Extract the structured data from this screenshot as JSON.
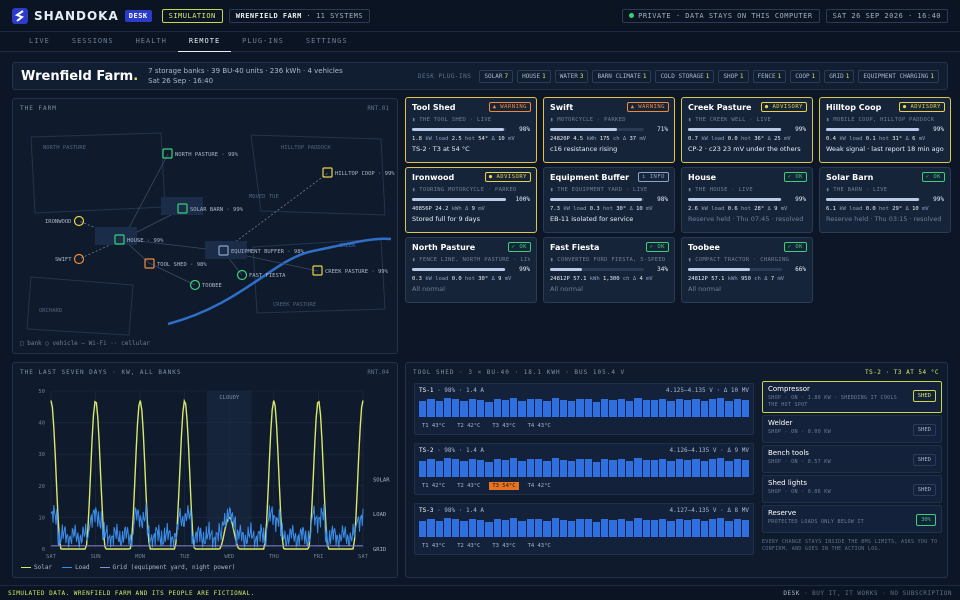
{
  "header": {
    "brand": "SHANDOKA",
    "desk_badge": "DESK",
    "mode": "SIMULATION",
    "farm_name": "WRENFIELD FARM",
    "systems": "· 11 SYSTEMS",
    "privacy": "PRIVATE · DATA STAYS ON THIS COMPUTER",
    "datetime": "SAT 26 SEP 2026 · 16:40"
  },
  "tabs": [
    "LIVE",
    "SESSIONS",
    "HEALTH",
    "REMOTE",
    "PLUG-INS",
    "SETTINGS"
  ],
  "active_tab": "REMOTE",
  "banner": {
    "title": "Wrenfield Farm",
    "title_dot": ".",
    "meta1": "7 storage banks · 39 BU-40 units · 236 kWh · 4 vehicles",
    "meta2": "Sat 26 Sep · 16:40",
    "plugins_label": "DESK PLUG-INS",
    "plugins": [
      {
        "name": "SOLAR",
        "count": "7"
      },
      {
        "name": "HOUSE",
        "count": "1"
      },
      {
        "name": "WATER",
        "count": "3"
      },
      {
        "name": "BARN CLIMATE",
        "count": "1"
      },
      {
        "name": "COLD STORAGE",
        "count": "1"
      },
      {
        "name": "SHOP",
        "count": "1"
      },
      {
        "name": "FENCE",
        "count": "1"
      },
      {
        "name": "COOP",
        "count": "1"
      },
      {
        "name": "GRID",
        "count": "1"
      },
      {
        "name": "EQUIPMENT CHARGING",
        "count": "1"
      }
    ]
  },
  "map": {
    "title": "THE FARM",
    "tag": "RNT.01",
    "regions": {
      "north_pasture": "NORTH PASTURE",
      "hilltop": "HILLTOP PADDOCK",
      "orchard": "ORCHARD",
      "creek_pasture": "CREEK PASTURE",
      "creek": "CREEK",
      "moved": "MOVED TUE"
    },
    "nodes": {
      "north_pasture": "NORTH PASTURE · 99%",
      "hilltop": "HILLTOP COOP · 99%",
      "solar_barn": "SOLAR BARN · 99%",
      "ironwood": "IRONWOOD",
      "house": "HOUSE · 99%",
      "swift": "SWIFT",
      "equipment": "EQUIPMENT BUFFER · 98%",
      "tool_shed": "TOOL SHED · 98%",
      "fast_fiesta": "FAST FIESTA",
      "creek_pasture": "CREEK PASTURE · 99%",
      "toobee": "TOOBEE"
    },
    "legend": "□ bank  ○ vehicle  — Wi-Fi  ·· cellular"
  },
  "cards": [
    {
      "name": "Tool Shed",
      "badge": "▲ WARNING",
      "level": "warning",
      "sub": "▮ THE TOOL SHED · LIVE",
      "pct": 98,
      "stats": [
        "1.8",
        "kW",
        "load",
        "2.5",
        "hot",
        "54°",
        "Δ",
        "10",
        "mV"
      ],
      "note": "TS-2 · T3 at 54 °C",
      "dim": false
    },
    {
      "name": "Swift",
      "badge": "▲ WARNING",
      "level": "warning",
      "sub": "▮ MOTORCYCLE · PARKED",
      "pct": 71,
      "stats": [
        "24820P",
        "4.5",
        "kWh",
        "175",
        "ch",
        "Δ",
        "37",
        "mV"
      ],
      "note": "c16 resistance rising",
      "dim": false
    },
    {
      "name": "Creek Pasture",
      "badge": "● ADVISORY",
      "level": "advisory",
      "sub": "▮ THE CREEK WELL · LIVE",
      "pct": 99,
      "stats": [
        "0.7",
        "kW",
        "load",
        "0.0",
        "hot",
        "36°",
        "Δ",
        "25",
        "mV"
      ],
      "note": "CP-2 · c23 23 mV under the others",
      "dim": false
    },
    {
      "name": "Hilltop Coop",
      "badge": "● ADVISORY",
      "level": "advisory",
      "sub": "▮ MOBILE COOP, HILLTOP PADDOCK",
      "pct": 99,
      "stats": [
        "0.4",
        "kW",
        "load",
        "0.1",
        "hot",
        "31°",
        "Δ",
        "6",
        "mV"
      ],
      "note": "Weak signal · last report 18 min ago",
      "dim": false
    },
    {
      "name": "Ironwood",
      "badge": "● ADVISORY",
      "level": "advisory",
      "sub": "▮ TOURING MOTORCYCLE · PARKED",
      "pct": 100,
      "stats": [
        "40856P",
        "24.2",
        "kWh",
        "",
        "",
        "Δ",
        "9",
        "mV"
      ],
      "note": "Stored full for 9 days",
      "dim": false
    },
    {
      "name": "Equipment Buffer",
      "badge": "i INFO",
      "level": "info",
      "sub": "▮ THE EQUIPMENT YARD · LIVE",
      "pct": 98,
      "stats": [
        "7.3",
        "kW",
        "load",
        "0.3",
        "hot",
        "30°",
        "Δ",
        "10",
        "mV"
      ],
      "note": "EB-11 isolated for service",
      "dim": false
    },
    {
      "name": "House",
      "badge": "✓ OK",
      "level": "ok",
      "sub": "▮ THE HOUSE · LIVE",
      "pct": 99,
      "stats": [
        "2.6",
        "kW",
        "load",
        "0.6",
        "hot",
        "28°",
        "Δ",
        "9",
        "mV"
      ],
      "note": "Reserve held · Thu 07:45 · resolved",
      "dim": true
    },
    {
      "name": "Solar Barn",
      "badge": "✓ OK",
      "level": "ok",
      "sub": "▮ THE BARN · LIVE",
      "pct": 99,
      "stats": [
        "6.1",
        "kW",
        "load",
        "0.0",
        "hot",
        "29°",
        "Δ",
        "10",
        "mV"
      ],
      "note": "Reserve held · Thu 03:15 · resolved",
      "dim": true
    },
    {
      "name": "North Pasture",
      "badge": "✓ OK",
      "level": "ok",
      "sub": "▮ FENCE LINE, NORTH PASTURE · LIV",
      "pct": 99,
      "stats": [
        "0.3",
        "kW",
        "load",
        "0.0",
        "hot",
        "30°",
        "Δ",
        "9",
        "mV"
      ],
      "note": "All normal",
      "dim": true
    },
    {
      "name": "Fast Fiesta",
      "badge": "✓ OK",
      "level": "ok",
      "sub": "▮ CONVERTED FORD FIESTA, 5-SPEED",
      "pct": 34,
      "stats": [
        "24812P",
        "57.1",
        "kWh",
        "1,300",
        "ch",
        "Δ",
        "4",
        "mV"
      ],
      "note": "All normal",
      "dim": true
    },
    {
      "name": "Toobee",
      "badge": "✓ OK",
      "level": "ok",
      "sub": "▮ COMPACT TRACTOR · CHARGING",
      "pct": 66,
      "stats": [
        "24812P",
        "57.1",
        "kWh",
        "950",
        "ch",
        "Δ",
        "7",
        "mV"
      ],
      "note": "All normal",
      "dim": true
    }
  ],
  "chart_data": {
    "type": "line",
    "title": "THE LAST SEVEN DAYS · KW, ALL BANKS",
    "tag": "RNT.04",
    "categories": [
      "SAT",
      "SUN",
      "MON",
      "TUE",
      "WED",
      "THU",
      "FRI",
      "SAT"
    ],
    "ylim": [
      0,
      50
    ],
    "yticks": [
      0,
      10,
      20,
      30,
      40,
      50
    ],
    "annotation": "CLOUDY",
    "series": [
      {
        "name": "Solar",
        "color": "#d9e86a",
        "peaks": [
          47,
          47,
          47,
          47,
          10,
          47,
          47,
          47
        ]
      },
      {
        "name": "Load",
        "color": "#3a8ce8",
        "base": [
          4,
          4,
          4,
          4,
          4,
          4,
          4,
          4
        ]
      },
      {
        "name": "Grid (equipment yard, night power)",
        "color": "#8a8ad8",
        "values": [
          1,
          1,
          1,
          1,
          1,
          1,
          1,
          1
        ]
      }
    ],
    "end_labels": [
      "SOLAR",
      "LOAD",
      "GRID"
    ]
  },
  "bank": {
    "header": "TOOL SHED · 3 × BU-40 · 18.1 KWH · BUS 105.4 V",
    "alert": "TS-2 · T3 AT 54 °C",
    "strings": [
      {
        "name": "TS-1",
        "info": "· 98% · 1.4 A",
        "range": "4.125–4.135 V · Δ 10 MV",
        "temps": [
          "T1 43°C",
          "T2 42°C",
          "T3 43°C",
          "T4 43°C"
        ],
        "hot": -1
      },
      {
        "name": "TS-2",
        "info": "· 98% · 1.4 A",
        "range": "4.126–4.135 V · Δ 9 MV",
        "temps": [
          "T1 42°C",
          "T2 43°C",
          "T3 54°C",
          "T4 42°C"
        ],
        "hot": 2
      },
      {
        "name": "TS-3",
        "info": "· 98% · 1.4 A",
        "range": "4.127–4.135 V · Δ 8 MV",
        "temps": [
          "T1 43°C",
          "T2 43°C",
          "T3 43°C",
          "T4 43°C"
        ],
        "hot": -1
      }
    ],
    "loads": [
      {
        "name": "Compressor",
        "desc": "SHOP · ON · 1.80 KW · SHEDDING IT COOLS THE HOT SPOT",
        "btn": "SHED",
        "active": true
      },
      {
        "name": "Welder",
        "desc": "SHOP · ON · 0.00 KW",
        "btn": "SHED",
        "active": false
      },
      {
        "name": "Bench tools",
        "desc": "SHOP · ON · 0.57 KW",
        "btn": "SHED",
        "active": false
      },
      {
        "name": "Shed lights",
        "desc": "SHOP · ON · 0.06 KW",
        "btn": "SHED",
        "active": false
      },
      {
        "name": "Reserve",
        "desc": "PROTECTED LOADS ONLY BELOW IT",
        "btn": "30%",
        "active": false
      }
    ],
    "note": "EVERY CHANGE STAYS INSIDE THE BMS LIMITS, ASKS YOU TO CONFIRM, AND GOES IN THE ACTION LOG."
  },
  "footer": {
    "left": "SIMULATED DATA. WRENFIELD FARM AND ITS PEOPLE ARE FICTIONAL.",
    "right_brand": "DESK",
    "right": "· BUY IT, IT WORKS · NO SUBSCRIPTION"
  }
}
